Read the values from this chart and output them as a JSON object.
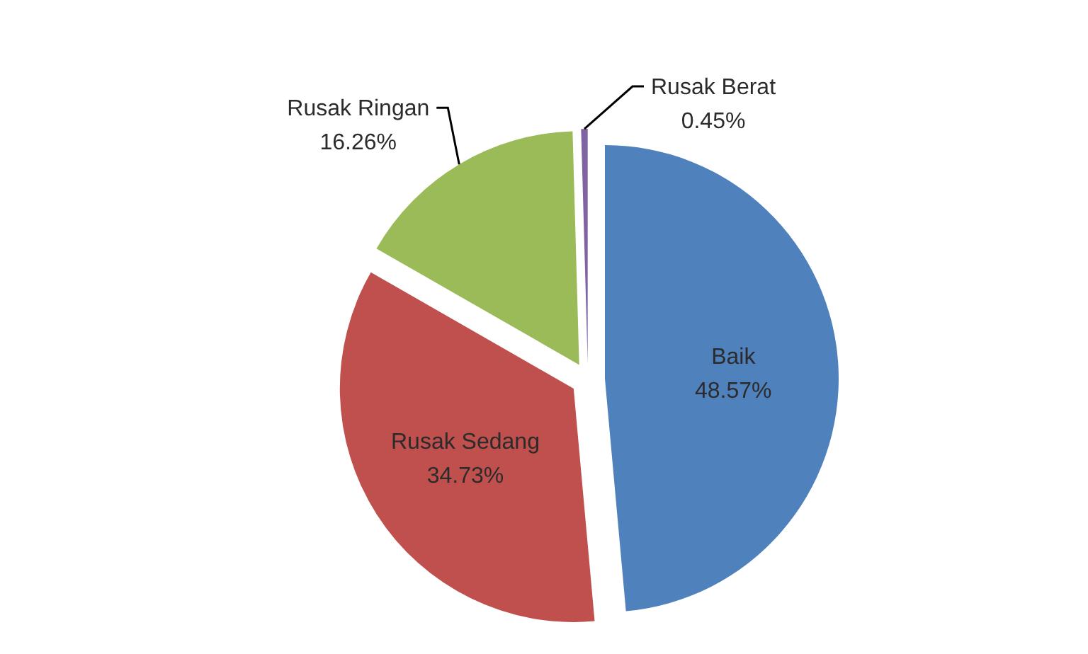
{
  "chart_data": {
    "type": "pie",
    "categories": [
      "Baik",
      "Rusak Sedang",
      "Rusak Ringan",
      "Rusak Berat"
    ],
    "values": [
      48.57,
      34.73,
      16.26,
      0.45
    ],
    "colors": [
      "#4f81bd",
      "#c0504d",
      "#9bbb59",
      "#8064a2"
    ],
    "value_labels": [
      "48.57%",
      "34.73%",
      "16.26%",
      "0.45%"
    ]
  }
}
